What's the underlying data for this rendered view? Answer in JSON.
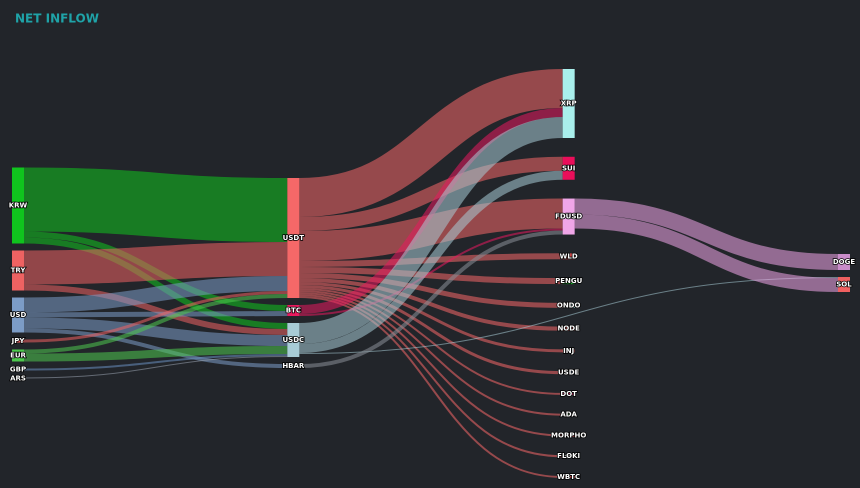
{
  "chart_data": {
    "type": "sankey",
    "title": "NET INFLOW",
    "nodes": [
      {
        "name": "KRW",
        "color": "#10c41e"
      },
      {
        "name": "TRY",
        "color": "#ee6262"
      },
      {
        "name": "USD",
        "color": "#7c9cc6"
      },
      {
        "name": "JPY",
        "color": "#f06060"
      },
      {
        "name": "EUR",
        "color": "#4ec94e"
      },
      {
        "name": "GBP",
        "color": "#6a8fc0"
      },
      {
        "name": "ARS",
        "color": "#9aa4b0"
      },
      {
        "name": "USDT",
        "color": "#f56868"
      },
      {
        "name": "BTC",
        "color": "#e81a5e"
      },
      {
        "name": "USDC",
        "color": "#a8ccd6"
      },
      {
        "name": "HBAR",
        "color": "#8a8f98"
      },
      {
        "name": "XRP",
        "color": "#a9efec"
      },
      {
        "name": "SUI",
        "color": "#ea0e5a"
      },
      {
        "name": "FDUSD",
        "color": "#f0a6e8"
      },
      {
        "name": "WLD",
        "color": "#e85050"
      },
      {
        "name": "PENGU",
        "color": "#1cbf2c"
      },
      {
        "name": "ONDO",
        "color": "#a9efec"
      },
      {
        "name": "NODE",
        "color": "#e85050"
      },
      {
        "name": "INJ",
        "color": "#f06060"
      },
      {
        "name": "USDE",
        "color": "#7c9cc6"
      },
      {
        "name": "DOT",
        "color": "#e81a5e"
      },
      {
        "name": "ADA",
        "color": "#4ec94e"
      },
      {
        "name": "MORPHO",
        "color": "#e85050"
      },
      {
        "name": "FLOKI",
        "color": "#e8e8e8"
      },
      {
        "name": "WBTC",
        "color": "#e85050"
      },
      {
        "name": "DOGE",
        "color": "#c98cc9"
      },
      {
        "name": "SOL",
        "color": "#f06060"
      }
    ],
    "links": [
      {
        "source": 0,
        "target": 7,
        "value": 64
      },
      {
        "source": 0,
        "target": 8,
        "value": 6
      },
      {
        "source": 0,
        "target": 9,
        "value": 6
      },
      {
        "source": 1,
        "target": 7,
        "value": 34
      },
      {
        "source": 1,
        "target": 9,
        "value": 6
      },
      {
        "source": 2,
        "target": 7,
        "value": 15
      },
      {
        "source": 2,
        "target": 8,
        "value": 5
      },
      {
        "source": 2,
        "target": 9,
        "value": 11
      },
      {
        "source": 2,
        "target": 10,
        "value": 4
      },
      {
        "source": 3,
        "target": 7,
        "value": 3
      },
      {
        "source": 4,
        "target": 7,
        "value": 4
      },
      {
        "source": 4,
        "target": 9,
        "value": 8
      },
      {
        "source": 5,
        "target": 9,
        "value": 2
      },
      {
        "source": 6,
        "target": 9,
        "value": 1
      },
      {
        "source": 7,
        "target": 11,
        "value": 39
      },
      {
        "source": 7,
        "target": 12,
        "value": 14
      },
      {
        "source": 7,
        "target": 13,
        "value": 30
      },
      {
        "source": 7,
        "target": 14,
        "value": 6
      },
      {
        "source": 7,
        "target": 15,
        "value": 6
      },
      {
        "source": 7,
        "target": 16,
        "value": 5
      },
      {
        "source": 7,
        "target": 17,
        "value": 4
      },
      {
        "source": 7,
        "target": 18,
        "value": 3
      },
      {
        "source": 7,
        "target": 19,
        "value": 3
      },
      {
        "source": 7,
        "target": 20,
        "value": 2
      },
      {
        "source": 7,
        "target": 21,
        "value": 2
      },
      {
        "source": 7,
        "target": 22,
        "value": 2
      },
      {
        "source": 7,
        "target": 23,
        "value": 2
      },
      {
        "source": 7,
        "target": 24,
        "value": 2
      },
      {
        "source": 8,
        "target": 11,
        "value": 9
      },
      {
        "source": 8,
        "target": 13,
        "value": 2
      },
      {
        "source": 9,
        "target": 11,
        "value": 21
      },
      {
        "source": 9,
        "target": 12,
        "value": 9
      },
      {
        "source": 9,
        "target": 26,
        "value": 1
      },
      {
        "source": 10,
        "target": 13,
        "value": 4
      },
      {
        "source": 13,
        "target": 25,
        "value": 16
      },
      {
        "source": 13,
        "target": 26,
        "value": 14
      }
    ]
  }
}
